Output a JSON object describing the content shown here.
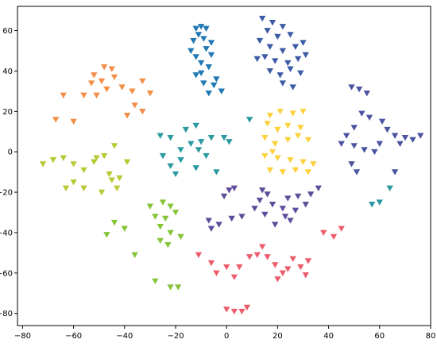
{
  "chart_data": {
    "type": "scatter",
    "title": "",
    "xlabel": "",
    "ylabel": "",
    "xlim": [
      -82,
      80
    ],
    "ylim": [
      -86,
      72
    ],
    "xticks": [
      -80,
      -60,
      -40,
      -20,
      0,
      20,
      40,
      60,
      80
    ],
    "yticks": [
      -80,
      -60,
      -40,
      -20,
      0,
      20,
      40,
      60
    ],
    "x_tick_labels": [
      "−80",
      "−60",
      "−40",
      "−20",
      "0",
      "20",
      "40",
      "60",
      "80"
    ],
    "y_tick_labels": [
      "−80",
      "−60",
      "−40",
      "−20",
      "0",
      "20",
      "40",
      "60"
    ],
    "marker": "triangle-down",
    "grid": false,
    "legend": "none",
    "series": [
      {
        "color": "#1f77b4",
        "points": [
          [
            -12,
            61
          ],
          [
            -10,
            62
          ],
          [
            -8,
            61
          ],
          [
            -11,
            58
          ],
          [
            -13,
            55
          ],
          [
            -9,
            56
          ],
          [
            -14,
            50
          ],
          [
            -12,
            47
          ],
          [
            -8,
            51
          ],
          [
            -6,
            48
          ],
          [
            -10,
            44
          ],
          [
            -7,
            42
          ],
          [
            -12,
            38
          ],
          [
            -9,
            34
          ],
          [
            -5,
            33
          ],
          [
            -2,
            30
          ],
          [
            -4,
            36
          ],
          [
            -7,
            29
          ],
          [
            -10,
            39
          ],
          [
            -6,
            54
          ]
        ]
      },
      {
        "color": "#3b5ba5",
        "points": [
          [
            14,
            66
          ],
          [
            18,
            64
          ],
          [
            22,
            62
          ],
          [
            16,
            60
          ],
          [
            20,
            57
          ],
          [
            25,
            58
          ],
          [
            13,
            55
          ],
          [
            17,
            52
          ],
          [
            22,
            50
          ],
          [
            27,
            52
          ],
          [
            30,
            54
          ],
          [
            15,
            47
          ],
          [
            19,
            45
          ],
          [
            24,
            44
          ],
          [
            28,
            46
          ],
          [
            17,
            40
          ],
          [
            21,
            38
          ],
          [
            25,
            41
          ],
          [
            29,
            39
          ],
          [
            22,
            34
          ],
          [
            26,
            32
          ],
          [
            31,
            48
          ],
          [
            12,
            46
          ]
        ]
      },
      {
        "color": "#f28e47",
        "points": [
          [
            -48,
            42
          ],
          [
            -45,
            41
          ],
          [
            -52,
            38
          ],
          [
            -49,
            35
          ],
          [
            -44,
            37
          ],
          [
            -53,
            34
          ],
          [
            -47,
            31
          ],
          [
            -41,
            32
          ],
          [
            -37,
            30
          ],
          [
            -33,
            35
          ],
          [
            -30,
            29
          ],
          [
            -36,
            23
          ],
          [
            -33,
            20
          ],
          [
            -39,
            18
          ],
          [
            -56,
            28
          ],
          [
            -64,
            28
          ],
          [
            -67,
            16
          ],
          [
            -60,
            15
          ],
          [
            -51,
            28
          ]
        ]
      },
      {
        "color": "#b8c934",
        "points": [
          [
            -72,
            -6
          ],
          [
            -68,
            -4
          ],
          [
            -64,
            -3
          ],
          [
            -60,
            -6
          ],
          [
            -56,
            -9
          ],
          [
            -52,
            -5
          ],
          [
            -48,
            -2
          ],
          [
            -44,
            3
          ],
          [
            -39,
            -5
          ],
          [
            -45,
            -14
          ],
          [
            -43,
            -18
          ],
          [
            -49,
            -20
          ],
          [
            -56,
            -18
          ],
          [
            -60,
            -15
          ],
          [
            -63,
            -18
          ],
          [
            -46,
            -11
          ],
          [
            -42,
            -13
          ],
          [
            -51,
            -3
          ]
        ]
      },
      {
        "color": "#86c43a",
        "points": [
          [
            -30,
            -27
          ],
          [
            -25,
            -25
          ],
          [
            -22,
            -27
          ],
          [
            -28,
            -32
          ],
          [
            -24,
            -33
          ],
          [
            -20,
            -30
          ],
          [
            -26,
            -37
          ],
          [
            -22,
            -40
          ],
          [
            -18,
            -42
          ],
          [
            -26,
            -44
          ],
          [
            -23,
            -46
          ],
          [
            -44,
            -35
          ],
          [
            -40,
            -38
          ],
          [
            -47,
            -41
          ],
          [
            -36,
            -51
          ],
          [
            -28,
            -64
          ],
          [
            -22,
            -67
          ],
          [
            -19,
            -67
          ]
        ]
      },
      {
        "color": "#2a9aa0",
        "points": [
          [
            -26,
            8
          ],
          [
            -22,
            7
          ],
          [
            -16,
            11
          ],
          [
            -12,
            13
          ],
          [
            -14,
            4
          ],
          [
            -18,
            1
          ],
          [
            -10,
            5
          ],
          [
            -6,
            7
          ],
          [
            -1,
            7
          ],
          [
            1,
            5
          ],
          [
            -22,
            -7
          ],
          [
            -20,
            -11
          ],
          [
            -12,
            -8
          ],
          [
            -4,
            -10
          ],
          [
            -11,
            1
          ],
          [
            -18,
            -4
          ],
          [
            -25,
            -2
          ],
          [
            -8,
            -2
          ],
          [
            64,
            -18
          ],
          [
            60,
            -25
          ],
          [
            57,
            -26
          ],
          [
            9,
            16
          ]
        ]
      },
      {
        "color": "#fdd23e",
        "points": [
          [
            17,
            18
          ],
          [
            21,
            20
          ],
          [
            26,
            19
          ],
          [
            30,
            20
          ],
          [
            16,
            14
          ],
          [
            20,
            11
          ],
          [
            24,
            13
          ],
          [
            29,
            12
          ],
          [
            15,
            7
          ],
          [
            19,
            4
          ],
          [
            24,
            6
          ],
          [
            28,
            8
          ],
          [
            32,
            6
          ],
          [
            15,
            -2
          ],
          [
            20,
            -3
          ],
          [
            25,
            -4
          ],
          [
            30,
            -5
          ],
          [
            34,
            -6
          ],
          [
            17,
            -9
          ],
          [
            22,
            -10
          ],
          [
            27,
            -9
          ],
          [
            32,
            -10
          ],
          [
            18,
            0
          ]
        ]
      },
      {
        "color": "#4c54a0",
        "points": [
          [
            49,
            32
          ],
          [
            52,
            31
          ],
          [
            55,
            29
          ],
          [
            53,
            19
          ],
          [
            56,
            17
          ],
          [
            50,
            12
          ],
          [
            47,
            8
          ],
          [
            45,
            4
          ],
          [
            50,
            3
          ],
          [
            54,
            1
          ],
          [
            58,
            0
          ],
          [
            61,
            15
          ],
          [
            63,
            11
          ],
          [
            66,
            8
          ],
          [
            70,
            7
          ],
          [
            73,
            6
          ],
          [
            76,
            8
          ],
          [
            60,
            4
          ],
          [
            49,
            -6
          ],
          [
            51,
            -10
          ],
          [
            66,
            -10
          ],
          [
            68,
            4
          ]
        ]
      },
      {
        "color": "#5f4c9a",
        "points": [
          [
            1,
            -19
          ],
          [
            3,
            -18
          ],
          [
            -1,
            -22
          ],
          [
            14,
            -19
          ],
          [
            16,
            -21
          ],
          [
            13,
            -24
          ],
          [
            18,
            -26
          ],
          [
            24,
            -23
          ],
          [
            28,
            -22
          ],
          [
            33,
            -21
          ],
          [
            36,
            -18
          ],
          [
            31,
            -26
          ],
          [
            27,
            -29
          ],
          [
            23,
            -32
          ],
          [
            19,
            -36
          ],
          [
            15,
            -31
          ],
          [
            11,
            -28
          ],
          [
            6,
            -32
          ],
          [
            2,
            -33
          ],
          [
            -3,
            -36
          ],
          [
            -6,
            -38
          ],
          [
            -7,
            -34
          ],
          [
            25,
            -34
          ],
          [
            22,
            -28
          ]
        ]
      },
      {
        "color": "#ec5d6c",
        "points": [
          [
            -11,
            -51
          ],
          [
            -6,
            -55
          ],
          [
            -4,
            -60
          ],
          [
            0,
            -57
          ],
          [
            3,
            -62
          ],
          [
            5,
            -57
          ],
          [
            12,
            -51
          ],
          [
            14,
            -47
          ],
          [
            16,
            -52
          ],
          [
            19,
            -56
          ],
          [
            24,
            -58
          ],
          [
            26,
            -53
          ],
          [
            29,
            -57
          ],
          [
            31,
            -61
          ],
          [
            32,
            -54
          ],
          [
            20,
            -63
          ],
          [
            22,
            -60
          ],
          [
            0,
            -78
          ],
          [
            3,
            -79
          ],
          [
            6,
            -79
          ],
          [
            8,
            -77
          ],
          [
            38,
            -40
          ],
          [
            42,
            -42
          ],
          [
            45,
            -38
          ],
          [
            9,
            -52
          ]
        ]
      }
    ]
  }
}
